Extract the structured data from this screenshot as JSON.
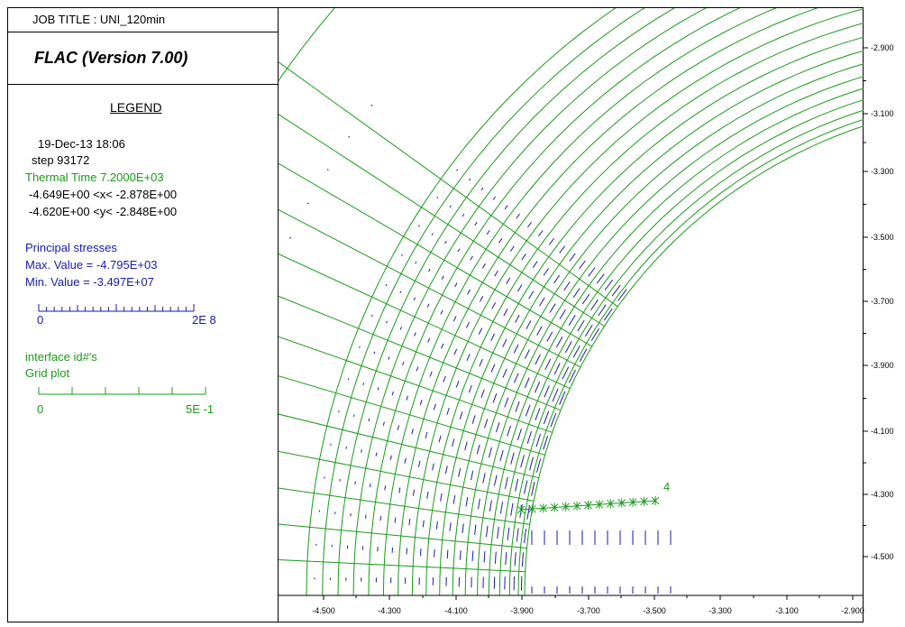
{
  "header": {
    "job_title": "JOB TITLE : UNI_120min",
    "program": "FLAC (Version 7.00)"
  },
  "legend": {
    "title": "LEGEND",
    "date": "19-Dec-13  18:06",
    "step": "step    93172",
    "thermal_time": "Thermal Time   7.2000E+03",
    "x_range": "-4.649E+00 <x< -2.878E+00",
    "y_range": "-4.620E+00 <y< -2.848E+00",
    "stress_title": "Principal stresses",
    "stress_max": "Max. Value =  -4.795E+03",
    "stress_min": "Min. Value =  -3.497E+07",
    "stress_scale_min": "0",
    "stress_scale_max": "2E  8",
    "interface_label": "interface id#'s",
    "grid_label": "Grid plot",
    "grid_scale_min": "0",
    "grid_scale_max": "5E -1",
    "colors": {
      "stress": "#1a1aa6",
      "grid": "#1a9a1a",
      "text": "#000000"
    }
  },
  "chart_data": {
    "type": "scatter",
    "title": "",
    "xlabel": "",
    "ylabel": "",
    "x_ticks": [
      "-4.500",
      "-4.300",
      "-4.100",
      "-3.900",
      "-3.700",
      "-3.500",
      "-3.300",
      "-3.100",
      "-2.900"
    ],
    "y_ticks": [
      "-2.900",
      "-3.100",
      "-3.300",
      "-3.500",
      "-3.700",
      "-3.900",
      "-4.100",
      "-4.300",
      "-4.500"
    ],
    "xlim": [
      -4.649,
      -2.878
    ],
    "ylim": [
      -4.62,
      -2.848
    ],
    "interface_id": "4",
    "grid_color": "#1a9a1a",
    "stress_color": "#1a1aa6"
  }
}
